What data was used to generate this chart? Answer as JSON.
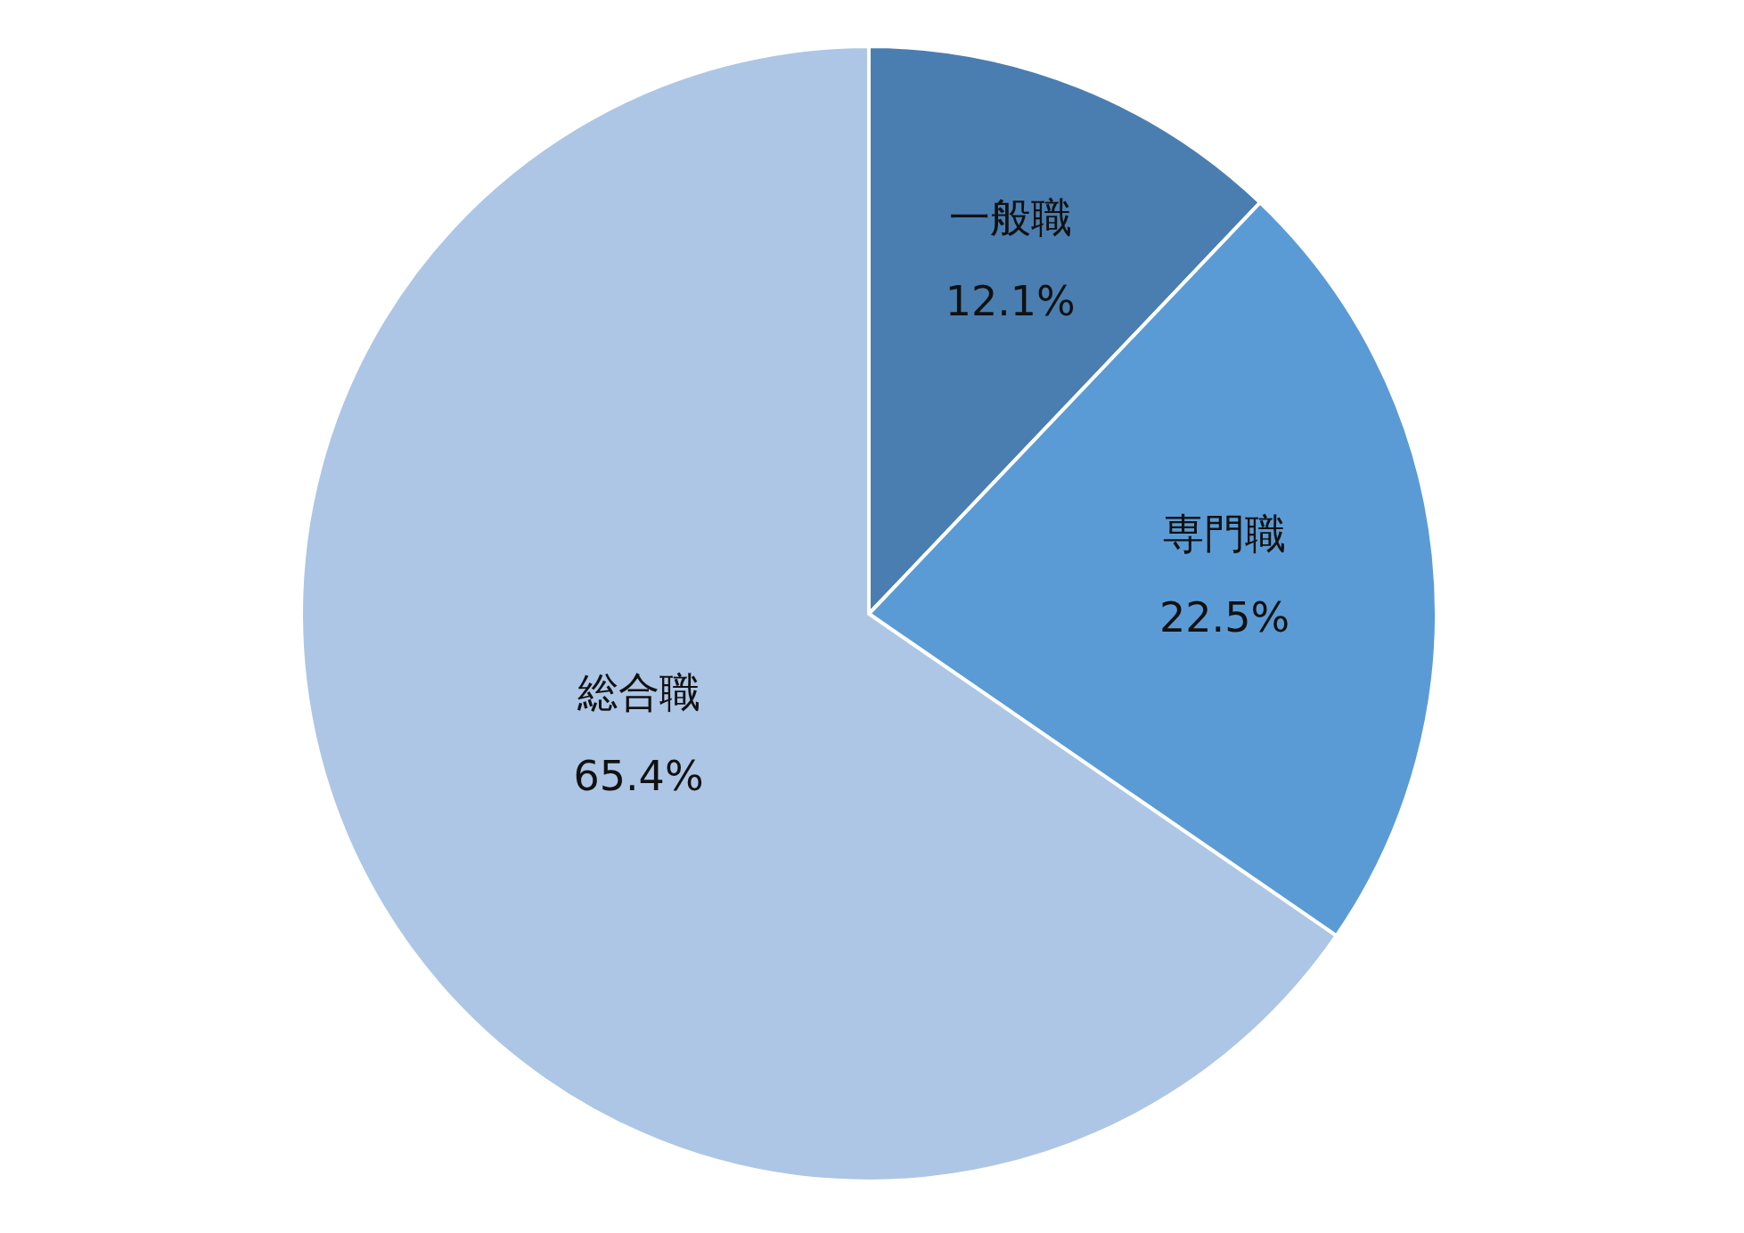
{
  "chart_data": {
    "type": "pie",
    "categories": [
      "一般職",
      "専門職",
      "総合職"
    ],
    "values": [
      12.1,
      22.5,
      65.4
    ],
    "value_labels": [
      "12.1%",
      "22.5%",
      "65.4%"
    ],
    "colors": [
      "#4a7eb0",
      "#5b9bd5",
      "#adc6e5"
    ]
  }
}
